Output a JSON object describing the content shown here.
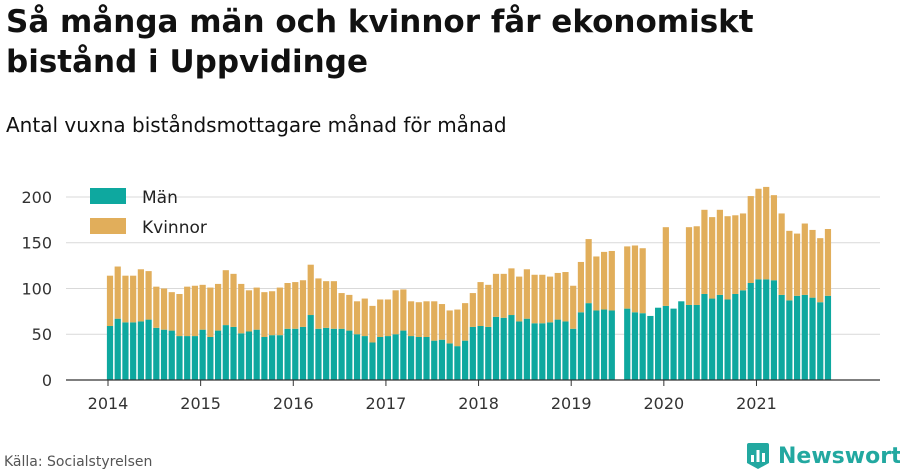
{
  "header": {
    "title": "Så många män och kvinnor får ekonomiskt bistånd i Uppvidinge",
    "subtitle": "Antal vuxna biståndsmottagare månad för månad"
  },
  "footer": {
    "source": "Källa: Socialstyrelsen",
    "brand": "Newsworthy",
    "brand_icon": "newsworthy-logo-icon"
  },
  "colors": {
    "men": "#0ea89f",
    "women": "#e1ae5b",
    "grid": "#d9d9d9",
    "axis": "#333333",
    "brand": "#22a8a0"
  },
  "chart_data": {
    "type": "bar",
    "stacked": true,
    "x_unit": "month",
    "x_start": "2014-01",
    "x_tick_labels": [
      "2014",
      "2015",
      "2016",
      "2017",
      "2018",
      "2019",
      "2020",
      "2021"
    ],
    "y_ticks": [
      0,
      50,
      100,
      150,
      200
    ],
    "ylim": [
      0,
      212
    ],
    "grid": true,
    "legend_position": "top-left",
    "series": [
      {
        "name": "Män",
        "values": [
          59,
          67,
          63,
          63,
          64,
          66,
          57,
          55,
          54,
          48,
          48,
          48,
          55,
          47,
          54,
          60,
          58,
          51,
          53,
          55,
          47,
          49,
          49,
          56,
          56,
          58,
          71,
          56,
          57,
          56,
          56,
          54,
          50,
          48,
          41,
          47,
          48,
          50,
          54,
          48,
          47,
          47,
          43,
          44,
          40,
          37,
          43,
          58,
          59,
          58,
          69,
          68,
          71,
          64,
          67,
          62,
          62,
          63,
          66,
          64,
          56,
          74,
          84,
          76,
          77,
          76,
          null,
          78,
          74,
          73,
          70,
          79,
          81,
          78,
          86,
          82,
          82,
          94,
          89,
          93,
          88,
          94,
          98,
          106,
          110,
          110,
          109,
          93,
          87,
          92,
          93,
          90,
          85,
          92
        ],
        "color": "#0ea89f"
      },
      {
        "name": "Kvinnor",
        "values": [
          55,
          57,
          51,
          51,
          57,
          53,
          45,
          45,
          42,
          46,
          54,
          55,
          49,
          54,
          51,
          60,
          58,
          54,
          45,
          46,
          49,
          48,
          52,
          50,
          51,
          51,
          55,
          55,
          51,
          52,
          39,
          39,
          36,
          41,
          40,
          41,
          40,
          48,
          45,
          38,
          38,
          39,
          43,
          39,
          36,
          40,
          41,
          37,
          48,
          46,
          47,
          48,
          51,
          49,
          54,
          53,
          53,
          50,
          51,
          54,
          47,
          55,
          70,
          59,
          63,
          65,
          null,
          68,
          73,
          71,
          0,
          0,
          86,
          0,
          0,
          85,
          86,
          92,
          89,
          93,
          91,
          86,
          84,
          95,
          99,
          101,
          93,
          89,
          76,
          68,
          78,
          74,
          70,
          73
        ]
      }
    ]
  }
}
